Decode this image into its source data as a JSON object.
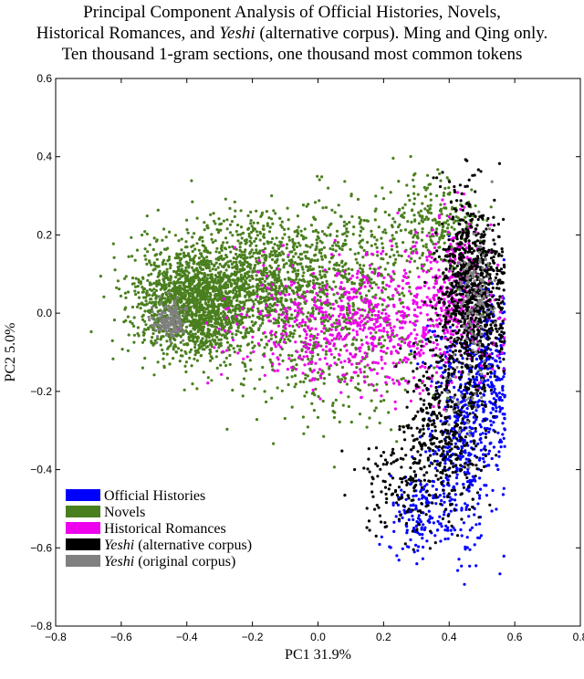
{
  "chart_data": {
    "type": "scatter",
    "title_lines": [
      [
        "Principal Component Analysis of Official Histories, Novels,"
      ],
      [
        "Historical Romances, and ",
        {
          "italic": "Yeshi"
        },
        " (alternative corpus). Ming and Qing only."
      ],
      [
        "Ten thousand 1-gram sections, one thousand most common tokens"
      ]
    ],
    "title_text": [
      "Principal Component Analysis of Official Histories, Novels,",
      "Historical Romances, and",
      "Yeshi",
      "(alternative corpus). Ming and Qing only.",
      "Ten thousand 1-gram sections, one thousand most common tokens"
    ],
    "xlabel": "PC1 31.9%",
    "ylabel": "PC2 5.0%",
    "xlim": [
      -0.8,
      0.8
    ],
    "ylim": [
      -0.8,
      0.6
    ],
    "x_ticks": [
      "−0.8",
      "−0.6",
      "−0.4",
      "−0.2",
      "0.0",
      "0.2",
      "0.4",
      "0.6",
      "0.8"
    ],
    "y_ticks": [
      "0.6",
      "0.4",
      "0.2",
      "0.0",
      "−0.2",
      "−0.4",
      "−0.6",
      "−0.8"
    ],
    "x_tick_values": [
      -0.8,
      -0.6,
      -0.4,
      -0.2,
      0.0,
      0.2,
      0.4,
      0.6,
      0.8
    ],
    "y_tick_values": [
      0.6,
      0.4,
      0.2,
      0.0,
      -0.2,
      -0.4,
      -0.6,
      -0.8
    ],
    "grid": false,
    "legend_position": "lower-left",
    "series": [
      {
        "name": "Official Histories",
        "color": "#0000ff",
        "name_parts": [
          {
            "text": "Official Histories"
          }
        ],
        "clusters": [
          {
            "cx": 0.44,
            "cy": -0.3,
            "sx": 0.055,
            "sy": 0.16,
            "n": 500
          },
          {
            "cx": 0.53,
            "cy": -0.15,
            "sx": 0.03,
            "sy": 0.12,
            "n": 200
          },
          {
            "cx": 0.31,
            "cy": -0.52,
            "sx": 0.05,
            "sy": 0.06,
            "n": 150
          }
        ]
      },
      {
        "name": "Novels",
        "color": "#4a7f1f",
        "name_parts": [
          {
            "text": "Novels"
          }
        ],
        "clusters": [
          {
            "cx": -0.38,
            "cy": 0.02,
            "sx": 0.09,
            "sy": 0.07,
            "n": 1500
          },
          {
            "cx": -0.2,
            "cy": 0.08,
            "sx": 0.12,
            "sy": 0.08,
            "n": 900
          },
          {
            "cx": 0.05,
            "cy": 0.12,
            "sx": 0.14,
            "sy": 0.09,
            "n": 500
          },
          {
            "cx": 0.35,
            "cy": 0.22,
            "sx": 0.08,
            "sy": 0.06,
            "n": 250
          },
          {
            "cx": 0.05,
            "cy": -0.1,
            "sx": 0.15,
            "sy": 0.1,
            "n": 350
          }
        ]
      },
      {
        "name": "Historical Romances",
        "color": "#ee00ee",
        "name_parts": [
          {
            "text": "Historical Romances"
          }
        ],
        "clusters": [
          {
            "cx": 0.22,
            "cy": -0.02,
            "sx": 0.13,
            "sy": 0.09,
            "n": 500
          },
          {
            "cx": 0.42,
            "cy": 0.05,
            "sx": 0.06,
            "sy": 0.1,
            "n": 300
          },
          {
            "cx": -0.05,
            "cy": -0.03,
            "sx": 0.12,
            "sy": 0.07,
            "n": 250
          }
        ]
      },
      {
        "name": "Yeshi (alternative corpus)",
        "color": "#000000",
        "name_parts": [
          {
            "italic": "Yeshi"
          },
          {
            "text": " (alternative corpus)"
          }
        ],
        "clusters": [
          {
            "cx": 0.47,
            "cy": 0.05,
            "sx": 0.05,
            "sy": 0.12,
            "n": 900
          },
          {
            "cx": 0.38,
            "cy": -0.3,
            "sx": 0.06,
            "sy": 0.12,
            "n": 400
          },
          {
            "cx": 0.25,
            "cy": -0.45,
            "sx": 0.06,
            "sy": 0.06,
            "n": 120
          }
        ]
      },
      {
        "name": "Yeshi (original corpus)",
        "color": "#808080",
        "name_parts": [
          {
            "italic": "Yeshi"
          },
          {
            "text": " (original corpus)"
          }
        ],
        "clusters": [
          {
            "cx": -0.45,
            "cy": -0.02,
            "sx": 0.025,
            "sy": 0.025,
            "n": 150
          },
          {
            "cx": 0.48,
            "cy": 0.05,
            "sx": 0.03,
            "sy": 0.08,
            "n": 120
          },
          {
            "cx": 0.45,
            "cy": -0.22,
            "sx": 0.03,
            "sy": 0.06,
            "n": 30
          }
        ]
      }
    ]
  }
}
